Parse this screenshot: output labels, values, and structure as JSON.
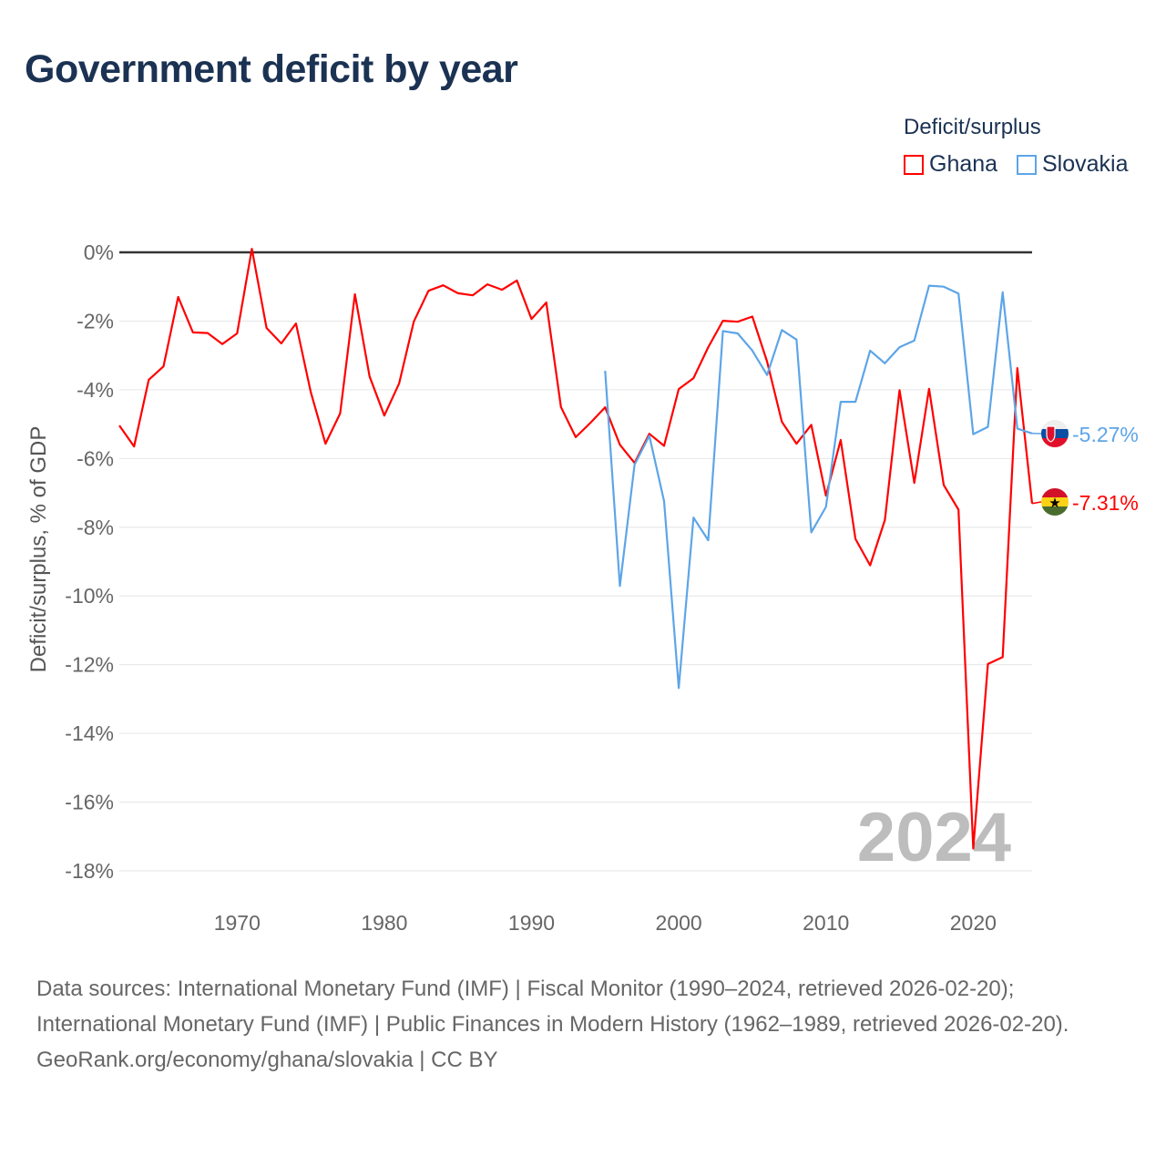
{
  "title": "Government deficit by year",
  "legend": {
    "title": "Deficit/surplus",
    "items": [
      {
        "name": "Ghana",
        "color": "#ff0000"
      },
      {
        "name": "Slovakia",
        "color": "#5da5e8"
      }
    ]
  },
  "footer": {
    "sources": "Data sources: International Monetary Fund (IMF) | Fiscal Monitor (1990–2024, retrieved 2026-02-20); International Monetary Fund (IMF) | Public Finances in Modern History (1962–1989, retrieved 2026-02-20).",
    "credit": "GeoRank.org/economy/ghana/slovakia | CC BY"
  },
  "chart_data": {
    "type": "line",
    "title": "Government deficit by year",
    "ylabel": "Deficit/surplus, % of GDP",
    "xlabel": "",
    "xlim": [
      1962,
      2024
    ],
    "ylim": [
      -18,
      0
    ],
    "xticks": [
      1970,
      1980,
      1990,
      2000,
      2010,
      2020
    ],
    "yticks": [
      0,
      -2,
      -4,
      -6,
      -8,
      -10,
      -12,
      -14,
      -16,
      -18
    ],
    "ytick_labels": [
      "0%",
      "-2%",
      "-4%",
      "-6%",
      "-8%",
      "-10%",
      "-12%",
      "-14%",
      "-16%",
      "-18%"
    ],
    "grid": true,
    "watermark_year": "2024",
    "legend_position": "top-right",
    "series": [
      {
        "name": "Ghana",
        "color": "#ff0000",
        "end_label": "-7.31%",
        "start_year": 1962,
        "values": [
          -5.04,
          -5.65,
          -3.71,
          -3.32,
          -1.3,
          -2.33,
          -2.35,
          -2.67,
          -2.36,
          0.1,
          -2.2,
          -2.65,
          -2.07,
          -4.06,
          -5.57,
          -4.69,
          -1.22,
          -3.61,
          -4.75,
          -3.82,
          -2.02,
          -1.12,
          -0.96,
          -1.19,
          -1.25,
          -0.93,
          -1.09,
          -0.82,
          -1.94,
          -1.46,
          -4.5,
          -5.38,
          -4.96,
          -4.51,
          -5.6,
          -6.13,
          -5.28,
          -5.63,
          -3.98,
          -3.66,
          -2.76,
          -1.99,
          -2.02,
          -1.87,
          -3.18,
          -4.93,
          -5.57,
          -5.02,
          -7.08,
          -5.46,
          -8.34,
          -9.11,
          -7.79,
          -4.01,
          -6.71,
          -3.97,
          -6.77,
          -7.49,
          -17.35,
          -11.98,
          -11.78,
          -3.37,
          -7.31
        ]
      },
      {
        "name": "Slovakia",
        "color": "#5da5e8",
        "end_label": "-5.27%",
        "start_year": 1995,
        "values": [
          -3.45,
          -9.71,
          -6.18,
          -5.34,
          -7.24,
          -12.68,
          -7.72,
          -8.38,
          -2.29,
          -2.36,
          -2.86,
          -3.57,
          -2.26,
          -2.54,
          -8.15,
          -7.41,
          -4.35,
          -4.35,
          -2.86,
          -3.23,
          -2.76,
          -2.57,
          -0.97,
          -1.0,
          -1.2,
          -5.29,
          -5.08,
          -1.16,
          -5.13,
          -5.27
        ]
      }
    ]
  }
}
